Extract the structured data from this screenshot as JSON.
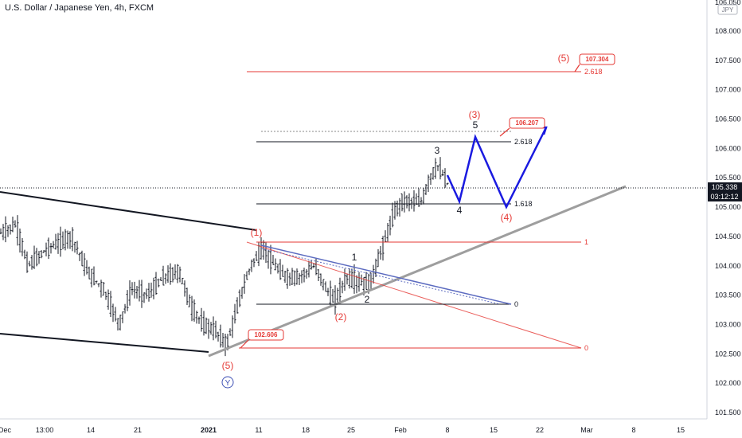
{
  "header": {
    "title": "U.S. Dollar / Japanese Yen, 4h, FXCM",
    "currency_badge": "JPY"
  },
  "price_scale": {
    "labels": [
      "106.500",
      "106.000",
      "105.500",
      "105.000",
      "104.500",
      "104.000",
      "103.500",
      "103.000",
      "102.500",
      "102.000",
      "101.500",
      "108.000",
      "107.500",
      "107.000",
      "105.338",
      "03:12:12",
      "106.050"
    ],
    "last_price": "105.338",
    "countdown": "03:12:12"
  },
  "time_axis": {
    "labels": [
      "Dec",
      "13:00",
      "14",
      "21",
      "2021",
      "11",
      "18",
      "25",
      "Feb",
      "8",
      "15",
      "22",
      "Mar",
      "8",
      "15"
    ]
  },
  "chart_data": {
    "type": "candlestick",
    "title": "U.S. Dollar / Japanese Yen, 4h, FXCM",
    "ylim": [
      101.3,
      108.5
    ],
    "price_axis_ticks": [
      101.5,
      102.0,
      102.5,
      103.0,
      103.5,
      104.0,
      104.5,
      105.0,
      105.5,
      106.0,
      106.5,
      107.0,
      107.5,
      108.0
    ],
    "last_price": 105.338,
    "wave_labels": [
      {
        "text": "(5)",
        "price": 102.35,
        "color": "#e53935"
      },
      {
        "text": "Y",
        "price": 102.0,
        "color": "#3f51b5"
      },
      {
        "text": "(1)",
        "price": 104.55,
        "color": "#e53935"
      },
      {
        "text": "(2)",
        "price": 103.05,
        "color": "#e53935"
      },
      {
        "text": "1",
        "price": 104.05,
        "color": "#131722"
      },
      {
        "text": "2",
        "price": 103.4,
        "color": "#131722"
      },
      {
        "text": "3",
        "price": 105.9,
        "color": "#131722"
      },
      {
        "text": "4",
        "price": 104.95,
        "color": "#131722"
      },
      {
        "text": "5",
        "price": 106.55,
        "color": "#131722"
      },
      {
        "text": "(3)",
        "price": 106.7,
        "color": "#e53935"
      },
      {
        "text": "(4)",
        "price": 104.85,
        "color": "#e53935"
      },
      {
        "text": "(5)",
        "price": 107.55,
        "color": "#e53935"
      }
    ],
    "fib_levels": [
      {
        "label": "2.618",
        "price": 107.32,
        "color": "#e53935"
      },
      {
        "label": "1.618",
        "price": 105.05,
        "color": "#131722"
      },
      {
        "label": "2.618",
        "price": 106.13,
        "color": "#131722"
      },
      {
        "label": "0",
        "price": 103.34,
        "color": "#131722"
      },
      {
        "label": "1",
        "price": 104.42,
        "color": "#e53935"
      },
      {
        "label": "0",
        "price": 102.6,
        "color": "#e53935"
      }
    ],
    "callouts": [
      {
        "text": "107.304",
        "price": 107.304
      },
      {
        "text": "106.207",
        "price": 106.207
      },
      {
        "text": "102.606",
        "price": 102.606
      }
    ]
  }
}
